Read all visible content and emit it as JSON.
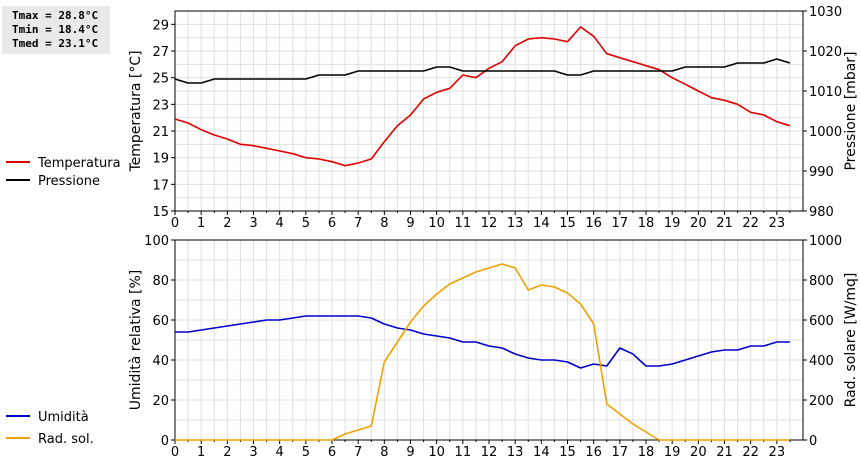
{
  "stats": {
    "tmax": "Tmax = 28.8°C",
    "tmin": "Tmin = 18.4°C",
    "tmed": "Tmed = 23.1°C"
  },
  "chart_data": [
    {
      "type": "line",
      "grid": true,
      "legend_placement": "left",
      "x_ticks": [
        "0",
        "1",
        "2",
        "3",
        "4",
        "5",
        "6",
        "7",
        "8",
        "9",
        "10",
        "11",
        "12",
        "13",
        "14",
        "15",
        "16",
        "17",
        "18",
        "19",
        "20",
        "21",
        "22",
        "23"
      ],
      "xlim": [
        0,
        24
      ],
      "ylabel": "Temperatura [°C]",
      "y2label": "Pressione [mbar]",
      "ylim": [
        15,
        30
      ],
      "y2lim": [
        980,
        1030
      ],
      "y_ticks": [
        15,
        17,
        19,
        21,
        23,
        25,
        27,
        29
      ],
      "y2_ticks": [
        980,
        990,
        1000,
        1010,
        1020,
        1030
      ],
      "series": [
        {
          "name": "Temperatura",
          "axis": "left",
          "color": "#e00000",
          "x": [
            0,
            0.5,
            1,
            1.5,
            2,
            2.5,
            3,
            3.5,
            4,
            4.5,
            5,
            5.5,
            6,
            6.5,
            7,
            7.5,
            8,
            8.5,
            9,
            9.5,
            10,
            10.5,
            11,
            11.5,
            12,
            12.5,
            13,
            13.5,
            14,
            14.5,
            15,
            15.5,
            16,
            16.5,
            17,
            17.5,
            18,
            18.5,
            19,
            19.5,
            20,
            20.5,
            21,
            21.5,
            22,
            22.5,
            23,
            23.5
          ],
          "values": [
            21.9,
            21.6,
            21.1,
            20.7,
            20.4,
            20.0,
            19.9,
            19.7,
            19.5,
            19.3,
            19.0,
            18.9,
            18.7,
            18.4,
            18.6,
            18.9,
            20.2,
            21.4,
            22.2,
            23.4,
            23.9,
            24.2,
            25.2,
            25.0,
            25.7,
            26.2,
            27.4,
            27.9,
            28.0,
            27.9,
            27.7,
            28.8,
            28.1,
            26.8,
            26.5,
            26.2,
            25.9,
            25.6,
            25.0,
            24.5,
            24.0,
            23.5,
            23.3,
            23.0,
            22.4,
            22.2,
            21.7,
            21.4
          ]
        },
        {
          "name": "Pressione",
          "axis": "right",
          "color": "#000000",
          "x": [
            0,
            0.5,
            1,
            1.5,
            2,
            2.5,
            3,
            3.5,
            4,
            4.5,
            5,
            5.5,
            6,
            6.5,
            7,
            7.5,
            8,
            8.5,
            9,
            9.5,
            10,
            10.5,
            11,
            11.5,
            12,
            12.5,
            13,
            13.5,
            14,
            14.5,
            15,
            15.5,
            16,
            16.5,
            17,
            17.5,
            18,
            18.5,
            19,
            19.5,
            20,
            20.5,
            21,
            21.5,
            22,
            22.5,
            23,
            23.5
          ],
          "values": [
            1013,
            1012,
            1012,
            1013,
            1013,
            1013,
            1013,
            1013,
            1013,
            1013,
            1013,
            1014,
            1014,
            1014,
            1015,
            1015,
            1015,
            1015,
            1015,
            1015,
            1016,
            1016,
            1015,
            1015,
            1015,
            1015,
            1015,
            1015,
            1015,
            1015,
            1014,
            1014,
            1015,
            1015,
            1015,
            1015,
            1015,
            1015,
            1015,
            1016,
            1016,
            1016,
            1016,
            1017,
            1017,
            1017,
            1018,
            1017
          ]
        }
      ]
    },
    {
      "type": "line",
      "grid": true,
      "legend_placement": "left",
      "x_ticks": [
        "0",
        "1",
        "2",
        "3",
        "4",
        "5",
        "6",
        "7",
        "8",
        "9",
        "10",
        "11",
        "12",
        "13",
        "14",
        "15",
        "16",
        "17",
        "18",
        "19",
        "20",
        "21",
        "22",
        "23"
      ],
      "xlim": [
        0,
        24
      ],
      "ylabel": "Umidità relativa [%]",
      "y2label": "Rad. solare [W/mq]",
      "ylim": [
        0,
        100
      ],
      "y2lim": [
        0,
        1000
      ],
      "y_ticks": [
        0,
        20,
        40,
        60,
        80,
        100
      ],
      "y2_ticks": [
        0,
        200,
        400,
        600,
        800,
        1000
      ],
      "series": [
        {
          "name": "Umidità",
          "axis": "left",
          "color": "#0000cc",
          "x": [
            0,
            0.5,
            1,
            1.5,
            2,
            2.5,
            3,
            3.5,
            4,
            4.5,
            5,
            5.5,
            6,
            6.5,
            7,
            7.5,
            8,
            8.5,
            9,
            9.5,
            10,
            10.5,
            11,
            11.5,
            12,
            12.5,
            13,
            13.5,
            14,
            14.5,
            15,
            15.5,
            16,
            16.5,
            17,
            17.5,
            18,
            18.5,
            19,
            19.5,
            20,
            20.5,
            21,
            21.5,
            22,
            22.5,
            23,
            23.5
          ],
          "values": [
            54,
            54,
            55,
            56,
            57,
            58,
            59,
            60,
            60,
            61,
            62,
            62,
            62,
            62,
            62,
            61,
            58,
            56,
            55,
            53,
            52,
            51,
            49,
            49,
            47,
            46,
            43,
            41,
            40,
            40,
            39,
            36,
            38,
            37,
            46,
            43,
            37,
            37,
            38,
            40,
            42,
            44,
            45,
            45,
            47,
            47,
            49,
            49
          ]
        },
        {
          "name": "Rad. sol.",
          "axis": "right",
          "color": "#f0a000",
          "x": [
            0,
            0.5,
            1,
            1.5,
            2,
            2.5,
            3,
            3.5,
            4,
            4.5,
            5,
            5.5,
            6,
            6.5,
            7,
            7.5,
            8,
            8.5,
            9,
            9.5,
            10,
            10.5,
            11,
            11.5,
            12,
            12.5,
            13,
            13.5,
            14,
            14.5,
            15,
            15.5,
            16,
            16.5,
            17,
            17.5,
            18,
            18.5,
            19,
            19.5,
            20,
            20.5,
            21,
            21.5,
            22,
            22.5,
            23,
            23.5
          ],
          "values": [
            0,
            0,
            0,
            0,
            0,
            0,
            0,
            0,
            0,
            0,
            0,
            0,
            0,
            30,
            50,
            70,
            390,
            490,
            590,
            670,
            730,
            780,
            810,
            840,
            860,
            880,
            860,
            750,
            775,
            765,
            735,
            680,
            580,
            180,
            130,
            80,
            40,
            0,
            0,
            0,
            0,
            0,
            0,
            0,
            0,
            0,
            0,
            0
          ]
        }
      ]
    }
  ]
}
